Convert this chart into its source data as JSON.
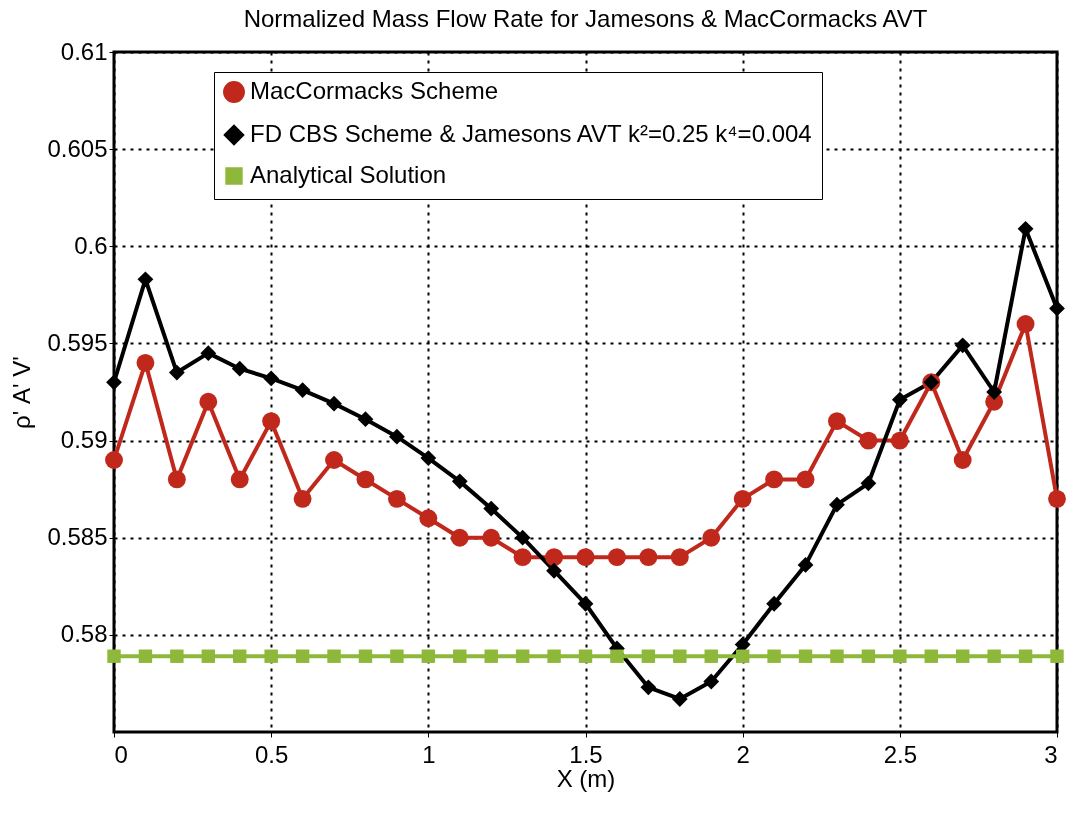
{
  "chart_data": {
    "type": "line",
    "title": "Normalized Mass Flow Rate for Jamesons & MacCormacks AVT",
    "xlabel": "X (m)",
    "ylabel": "ρ' A' V'",
    "x": [
      0,
      0.1,
      0.2,
      0.3,
      0.4,
      0.5,
      0.6,
      0.7,
      0.8,
      0.9,
      1,
      1.1,
      1.2,
      1.3,
      1.4,
      1.5,
      1.6,
      1.7,
      1.8,
      1.9,
      2,
      2.1,
      2.2,
      2.3,
      2.4,
      2.5,
      2.6,
      2.7,
      2.8,
      2.9,
      3
    ],
    "series": [
      {
        "name": "MacCormacks Scheme",
        "color": "#c0281c",
        "marker": "circle",
        "values": [
          0.589,
          0.594,
          0.588,
          0.592,
          0.588,
          0.591,
          0.587,
          0.589,
          0.588,
          0.587,
          0.586,
          0.585,
          0.585,
          0.584,
          0.584,
          0.584,
          0.584,
          0.584,
          0.584,
          0.585,
          0.587,
          0.588,
          0.588,
          0.591,
          0.59,
          0.59,
          0.593,
          0.589,
          0.592,
          0.596,
          0.587
        ]
      },
      {
        "name": " FD CBS Scheme & Jamesons AVT k²=0.25 k⁴=0.004",
        "color": "#000000",
        "marker": "diamond",
        "values": [
          0.593,
          0.5983,
          0.5935,
          0.5945,
          0.5937,
          0.5932,
          0.5926,
          0.5919,
          0.5911,
          0.5902,
          0.5891,
          0.5879,
          0.5865,
          0.585,
          0.5833,
          0.5816,
          0.5793,
          0.5773,
          0.5767,
          0.5776,
          0.5795,
          0.5816,
          0.5836,
          0.5867,
          0.5878,
          0.5921,
          0.593,
          0.5949,
          0.5925,
          0.6009,
          0.5968
        ]
      },
      {
        "name": "Analytical Solution",
        "color": "#8db83a",
        "marker": "square",
        "values": [
          0.5789,
          0.5789,
          0.5789,
          0.5789,
          0.5789,
          0.5789,
          0.5789,
          0.5789,
          0.5789,
          0.5789,
          0.5789,
          0.5789,
          0.5789,
          0.5789,
          0.5789,
          0.5789,
          0.5789,
          0.5789,
          0.5789,
          0.5789,
          0.5789,
          0.5789,
          0.5789,
          0.5789,
          0.5789,
          0.5789,
          0.5789,
          0.5789,
          0.5789,
          0.5789,
          0.5789
        ]
      }
    ],
    "xlim": [
      0,
      3
    ],
    "xticks": [
      0,
      0.5,
      1,
      1.5,
      2,
      2.5,
      3
    ],
    "ylim": [
      0.575,
      0.61
    ],
    "yticks": [
      0.58,
      0.585,
      0.59,
      0.595,
      0.6,
      0.605,
      0.61
    ],
    "grid": true,
    "legend": "top",
    "line_style": "solid"
  }
}
